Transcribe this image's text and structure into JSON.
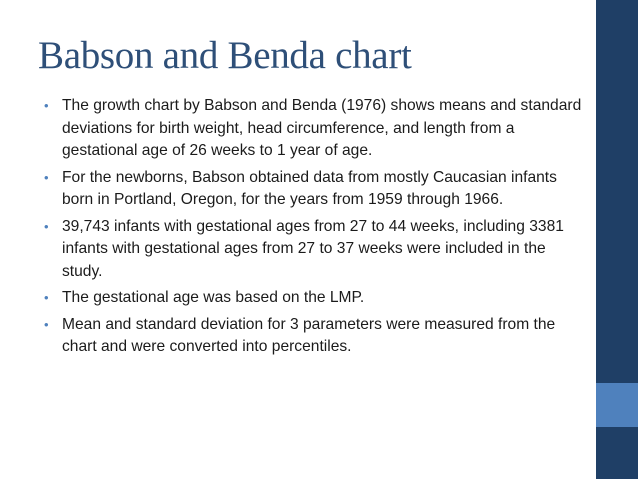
{
  "slide": {
    "title": "Babson and Benda chart",
    "bullets": [
      "The growth chart by Babson and Benda (1976) shows means and standard deviations for birth weight, head circumference, and length from a gestational age of 26 weeks to 1 year of age.",
      "For the newborns, Babson obtained data from mostly Caucasian infants born in Portland, Oregon, for the years from 1959 through 1966.",
      "39,743 infants with gestational ages from 27 to 44 weeks, including 3381 infants with gestational ages from 27 to 37 weeks were included in the study.",
      "The gestational age was based on the LMP.",
      "Mean and standard deviation for 3 parameters were measured from the chart and were converted into percentiles."
    ],
    "bullet_glyph": "•"
  },
  "theme": {
    "title_color": "#2e4f78",
    "sidebar_color": "#1f3f66",
    "accent_color": "#4f81bd"
  }
}
